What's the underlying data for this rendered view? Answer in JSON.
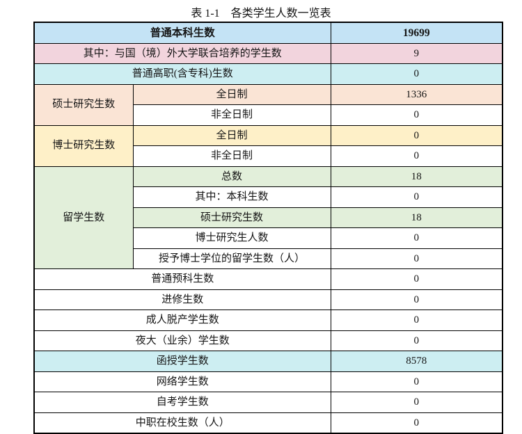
{
  "title": "表 1-1　各类学生人数一览表",
  "colors": {
    "border": "#000000",
    "text": "#151515",
    "blue": "#C4E3F5",
    "pink": "#F2D4DD",
    "cyan": "#CDEEF2",
    "peach": "#FAE4D5",
    "yellow": "#FEF0C8",
    "green": "#E2EFDA",
    "white": "#FFFFFF"
  },
  "table": {
    "columns": {
      "group_width": 142,
      "label_width": 284,
      "value_width": 247
    },
    "rows": [
      {
        "type": "merged",
        "label": "普通本科生数",
        "value": "19699",
        "bg": "blue",
        "bold": true
      },
      {
        "type": "merged",
        "label": "其中：与国（境）外大学联合培养的学生数",
        "value": "9",
        "bg": "pink"
      },
      {
        "type": "merged",
        "label": "普通高职(含专科)生数",
        "value": "0",
        "bg": "cyan"
      },
      {
        "type": "group-start",
        "group": "硕士研究生数",
        "group_bg": "peach",
        "span": 2,
        "label": "全日制",
        "value": "1336",
        "bg": "peach"
      },
      {
        "type": "group-cont",
        "label": "非全日制",
        "value": "0",
        "bg": "white"
      },
      {
        "type": "group-start",
        "group": "博士研究生数",
        "group_bg": "yellow",
        "span": 2,
        "label": "全日制",
        "value": "0",
        "bg": "yellow"
      },
      {
        "type": "group-cont",
        "label": "非全日制",
        "value": "0",
        "bg": "white"
      },
      {
        "type": "group-start",
        "group": "留学生数",
        "group_bg": "green",
        "span": 5,
        "label": "总数",
        "value": "18",
        "bg": "green"
      },
      {
        "type": "group-cont",
        "label": "其中：本科生数",
        "value": "0",
        "bg": "white"
      },
      {
        "type": "group-cont",
        "label": "硕士研究生数",
        "value": "18",
        "bg": "green"
      },
      {
        "type": "group-cont",
        "label": "博士研究生人数",
        "value": "0",
        "bg": "white"
      },
      {
        "type": "group-cont",
        "label": "授予博士学位的留学生数（人）",
        "value": "0",
        "bg": "white"
      },
      {
        "type": "merged",
        "label": "普通预科生数",
        "value": "0",
        "bg": "white"
      },
      {
        "type": "merged",
        "label": "进修生数",
        "value": "0",
        "bg": "white"
      },
      {
        "type": "merged",
        "label": "成人脱产学生数",
        "value": "0",
        "bg": "white"
      },
      {
        "type": "merged",
        "label": "夜大（业余）学生数",
        "value": "0",
        "bg": "white"
      },
      {
        "type": "merged",
        "label": "函授学生数",
        "value": "8578",
        "bg": "cyan"
      },
      {
        "type": "merged",
        "label": "网络学生数",
        "value": "0",
        "bg": "white"
      },
      {
        "type": "merged",
        "label": "自考学生数",
        "value": "0",
        "bg": "white"
      },
      {
        "type": "merged",
        "label": "中职在校生数（人）",
        "value": "0",
        "bg": "white"
      }
    ]
  }
}
